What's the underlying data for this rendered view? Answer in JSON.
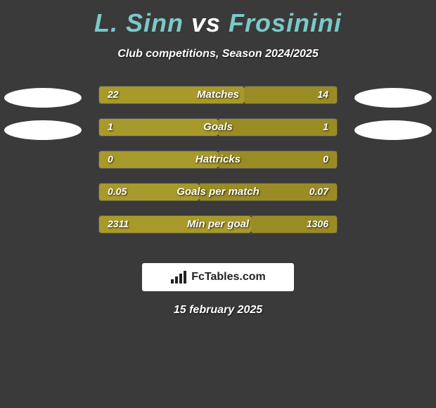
{
  "background_color": "#3a3a3a",
  "title": {
    "player1": "L. Sinn",
    "vs": "vs",
    "player2": "Frosinini",
    "player_color": "#7bc9c9",
    "vs_color": "#ffffff",
    "fontsize": 36
  },
  "subtitle": {
    "text": "Club competitions, Season 2024/2025",
    "color": "#ffffff",
    "fontsize": 16
  },
  "bar_colors": {
    "left": "#a89a2a",
    "right": "#9a8c24"
  },
  "stats": [
    {
      "label": "Matches",
      "left_value": "22",
      "right_value": "14",
      "left_pct": 61,
      "right_pct": 39,
      "show_avatars": true
    },
    {
      "label": "Goals",
      "left_value": "1",
      "right_value": "1",
      "left_pct": 50,
      "right_pct": 50,
      "show_avatars": true
    },
    {
      "label": "Hattricks",
      "left_value": "0",
      "right_value": "0",
      "left_pct": 50,
      "right_pct": 50,
      "show_avatars": false
    },
    {
      "label": "Goals per match",
      "left_value": "0.05",
      "right_value": "0.07",
      "left_pct": 42,
      "right_pct": 58,
      "show_avatars": false
    },
    {
      "label": "Min per goal",
      "left_value": "2311",
      "right_value": "1306",
      "left_pct": 64,
      "right_pct": 36,
      "show_avatars": false
    }
  ],
  "logo": {
    "text": "FcTables.com",
    "icon_name": "bars-icon"
  },
  "date": "15 february 2025"
}
